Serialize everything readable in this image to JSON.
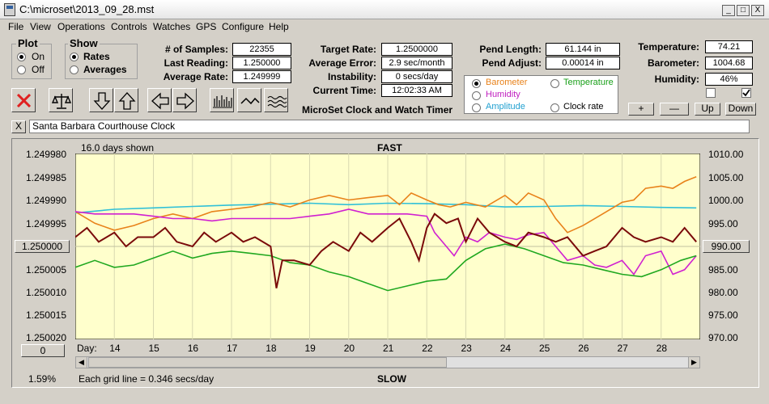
{
  "window": {
    "title": "C:\\microset\\2013_09_28.mst",
    "controls": [
      "_",
      "□",
      "X"
    ]
  },
  "menu": [
    "File",
    "View",
    "Operations",
    "Controls",
    "Watches",
    "GPS",
    "Configure",
    "Help"
  ],
  "plot_group": {
    "title": "Plot",
    "options": [
      "On",
      "Off"
    ],
    "selected": "On"
  },
  "show_group": {
    "title": "Show",
    "options": [
      "Rates",
      "Averages"
    ],
    "selected": "Rates"
  },
  "stats": {
    "samples_label": "# of Samples:",
    "samples": "22355",
    "last_reading_label": "Last Reading:",
    "last_reading": "1.250000",
    "avg_rate_label": "Average Rate:",
    "avg_rate": "1.249999"
  },
  "rates": {
    "target_label": "Target Rate:",
    "target": "1.2500000",
    "avg_error_label": "Average Error:",
    "avg_error": "2.9 sec/month",
    "instability_label": "Instability:",
    "instability": "0 secs/day",
    "current_time_label": "Current Time:",
    "current_time": "12:02:33 AM"
  },
  "pend": {
    "length_label": "Pend Length:",
    "length": "61.144 in",
    "adjust_label": "Pend Adjust:",
    "adjust": "0.00014 in"
  },
  "overlay_options": [
    {
      "label": "Barometer",
      "color": "#e8821a",
      "checked": true
    },
    {
      "label": "Temperature",
      "color": "#1aa01a",
      "checked": false
    },
    {
      "label": "Humidity",
      "color": "#c020c0",
      "checked": false
    },
    {
      "label": "Amplitude",
      "color": "#20a0d0",
      "checked": false
    },
    {
      "label": "Clock rate",
      "color": "#000000",
      "checked": false
    }
  ],
  "environment": {
    "temperature_label": "Temperature:",
    "temperature": "74.21",
    "barometer_label": "Barometer:",
    "barometer": "1004.68",
    "humidity_label": "Humidity:",
    "humidity": "46%"
  },
  "adjust_buttons": [
    "+",
    "—",
    "Up",
    "Down"
  ],
  "app_name": "MicroSet Clock and Watch Timer",
  "clock_name": "Santa Barbara Courthouse Clock",
  "clock_close": "X",
  "toolbar_icons": [
    "stop-icon",
    "balance-scale-icon",
    "arrow-down-icon",
    "arrow-up-icon",
    "arrow-left-icon",
    "arrow-right-icon",
    "histogram-icon",
    "wave-icon",
    "multi-wave-icon"
  ],
  "chart": {
    "days_shown": "16.0 days shown",
    "top_label": "FAST",
    "bottom_label": "SLOW",
    "left_box": "1.250000",
    "right_box": "990.00",
    "zero_button": "0",
    "day_prefix": "Day:",
    "percent": "1.59%",
    "grid_note": "Each grid line = 0.346 secs/day"
  },
  "chart_data": {
    "type": "line",
    "background": "#ffffcc",
    "left_ticks": [
      "1.249980",
      "1.249985",
      "1.249990",
      "1.249995",
      "1.250000",
      "1.250005",
      "1.250010",
      "1.250015",
      "1.250020"
    ],
    "right_ticks": [
      "1010.00",
      "1005.00",
      "1000.00",
      "995.00",
      "990.00",
      "985.00",
      "980.00",
      "975.00",
      "970.00"
    ],
    "ylim_rate": [
      1.24998,
      1.25002
    ],
    "ylim_baro": [
      970,
      1010
    ],
    "x_days": [
      "14",
      "15",
      "16",
      "17",
      "18",
      "19",
      "20",
      "21",
      "22",
      "23",
      "24",
      "25",
      "26",
      "27",
      "28"
    ],
    "xlim": [
      13.0,
      29.0
    ],
    "series": [
      {
        "color": "#30c0d8",
        "x": [
          13.0,
          14,
          15,
          16,
          17,
          18,
          19,
          20,
          21,
          22,
          23,
          24,
          25,
          26,
          27,
          28,
          28.9
        ],
        "y": [
          997.2,
          998.0,
          998.3,
          998.6,
          998.9,
          999.1,
          999.3,
          999.0,
          999.3,
          999.2,
          999.0,
          998.5,
          998.6,
          998.8,
          998.6,
          998.4,
          998.3
        ]
      },
      {
        "color": "#e8821a",
        "x": [
          13.0,
          13.5,
          14,
          14.5,
          15,
          15.5,
          16,
          16.5,
          17,
          17.5,
          18,
          18.5,
          19,
          19.5,
          20,
          20.5,
          21,
          21.3,
          21.6,
          22,
          22.3,
          22.6,
          23,
          23.5,
          24,
          24.3,
          24.6,
          25,
          25.3,
          25.6,
          26,
          26.5,
          27,
          27.3,
          27.6,
          28,
          28.3,
          28.6,
          28.9
        ],
        "y": [
          997.5,
          995.0,
          993.5,
          994.5,
          996.0,
          997.0,
          996.0,
          997.5,
          998.0,
          998.5,
          999.5,
          998.5,
          1000.0,
          1001.0,
          1000.0,
          1000.5,
          1001.0,
          999.0,
          1001.5,
          1000.0,
          999.0,
          998.5,
          999.5,
          998.5,
          1001.0,
          999.0,
          1001.5,
          1000.0,
          996.0,
          993.0,
          994.5,
          997.0,
          999.5,
          1000.0,
          1002.5,
          1003.0,
          1002.5,
          1004.0,
          1005.0
        ]
      },
      {
        "color": "#d020d0",
        "x": [
          13.0,
          13.5,
          14,
          14.5,
          15,
          15.5,
          16,
          16.5,
          17,
          17.5,
          18,
          18.5,
          19,
          19.5,
          20,
          20.5,
          21,
          21.5,
          22,
          22.2,
          22.5,
          22.7,
          23,
          23.3,
          23.6,
          24,
          24.3,
          24.6,
          25,
          25.3,
          25.6,
          26,
          26.3,
          26.6,
          27,
          27.3,
          27.6,
          28,
          28.3,
          28.6,
          28.9
        ],
        "y": [
          997.5,
          997.0,
          997.0,
          997.0,
          996.5,
          996.0,
          996.0,
          995.5,
          996.0,
          996.0,
          996.0,
          996.0,
          996.5,
          997.0,
          998.0,
          997.0,
          997.0,
          997.0,
          996.5,
          993.0,
          990.0,
          988.0,
          992.0,
          991.0,
          993.0,
          992.0,
          991.5,
          992.5,
          993.0,
          990.0,
          987.0,
          988.0,
          986.0,
          985.5,
          987.0,
          984.0,
          988.0,
          989.0,
          984.0,
          985.0,
          988.0
        ]
      },
      {
        "color": "#20a820",
        "x": [
          13.0,
          13.5,
          14,
          14.5,
          15,
          15.5,
          16,
          16.5,
          17,
          17.5,
          18,
          18.5,
          19,
          19.5,
          20,
          20.5,
          21,
          21.5,
          22,
          22.5,
          23,
          23.5,
          24,
          24.5,
          25,
          25.5,
          26,
          26.5,
          27,
          27.5,
          28,
          28.5,
          28.9
        ],
        "y": [
          985.5,
          987.0,
          985.5,
          986.0,
          987.5,
          989.0,
          987.5,
          988.5,
          989.0,
          988.5,
          988.0,
          986.5,
          986.0,
          984.5,
          983.5,
          982.0,
          980.5,
          981.5,
          982.5,
          983.0,
          987.0,
          989.5,
          990.5,
          989.5,
          988.0,
          986.5,
          986.0,
          985.0,
          984.0,
          983.5,
          985.0,
          987.0,
          988.0
        ]
      }
    ],
    "rate_series": {
      "color": "#7a0a0a",
      "x": [
        13.0,
        13.3,
        13.6,
        14.0,
        14.3,
        14.6,
        15.0,
        15.3,
        15.6,
        16.0,
        16.3,
        16.6,
        17.0,
        17.3,
        17.6,
        18.0,
        18.15,
        18.3,
        18.6,
        19.0,
        19.3,
        19.6,
        20.0,
        20.3,
        20.6,
        21.0,
        21.3,
        21.6,
        21.8,
        22.0,
        22.2,
        22.5,
        22.8,
        23.0,
        23.3,
        23.6,
        24.0,
        24.3,
        24.6,
        25.0,
        25.3,
        25.6,
        26.0,
        26.3,
        26.6,
        27.0,
        27.3,
        27.6,
        28.0,
        28.3,
        28.6,
        28.9
      ],
      "y": [
        1.249998,
        1.249996,
        1.249999,
        1.249997,
        1.25,
        1.249998,
        1.249998,
        1.249996,
        1.249999,
        1.25,
        1.249997,
        1.249999,
        1.249997,
        1.249999,
        1.249998,
        1.25,
        1.250009,
        1.250003,
        1.250003,
        1.250004,
        1.250001,
        1.249999,
        1.250001,
        1.249997,
        1.249999,
        1.249996,
        1.249994,
        1.249999,
        1.250003,
        1.249996,
        1.249993,
        1.249995,
        1.249994,
        1.249999,
        1.249994,
        1.249997,
        1.249999,
        1.25,
        1.249997,
        1.249998,
        1.249999,
        1.249998,
        1.250002,
        1.250001,
        1.25,
        1.249996,
        1.249998,
        1.249999,
        1.249998,
        1.249999,
        1.249996,
        1.249999
      ]
    }
  }
}
